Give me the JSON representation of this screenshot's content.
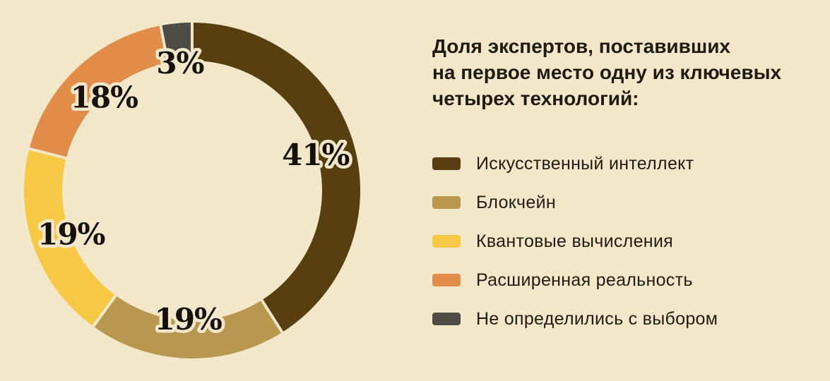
{
  "title": {
    "lines": [
      "Доля экспертов, поставивших",
      "на первое место одну из ключевых",
      "четырех технологий:"
    ]
  },
  "colors": {
    "background": "#F2E7C9",
    "text": "#211A0E",
    "pct_label": "#16110B"
  },
  "chart_data": {
    "type": "pie",
    "subtype": "donut",
    "title": "Доля экспертов, поставивших на первое место одну из ключевых четырех технологий:",
    "unit": "%",
    "start_angle_deg": 0,
    "direction": "clockwise",
    "legend_position": "right",
    "slices": [
      {
        "label": "Искусственный интеллект",
        "value": 41,
        "display": "41%",
        "color": "#573F10"
      },
      {
        "label": "Блокчейн",
        "value": 19,
        "display": "19%",
        "color": "#B8974F"
      },
      {
        "label": "Квантовые вычисления",
        "value": 19,
        "display": "19%",
        "color": "#F6C844"
      },
      {
        "label": "Расширенная реальность",
        "value": 18,
        "display": "18%",
        "color": "#E18C49"
      },
      {
        "label": "Не определились с выбором",
        "value": 3,
        "display": "3%",
        "color": "#4F4C47"
      }
    ]
  }
}
